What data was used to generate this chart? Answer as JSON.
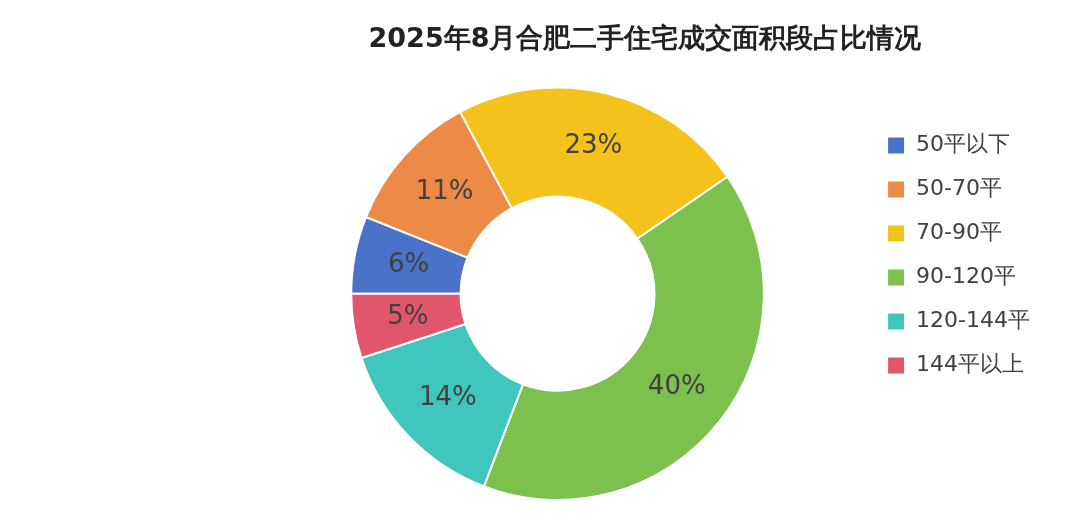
{
  "chart_data": {
    "type": "donut",
    "title": "2025年8月合肥二手住宅成交面积段占比情况",
    "categories": [
      "50平以下",
      "50-70平",
      "70-90平",
      "90-120平",
      "120-144平",
      "144平以上"
    ],
    "values": [
      6,
      11,
      23,
      40,
      14,
      5
    ],
    "value_labels": [
      "6%",
      "11%",
      "23%",
      "40%",
      "14%",
      "5%"
    ],
    "colors": [
      "#4a72c8",
      "#ee8a48",
      "#f5c21b",
      "#7cc04e",
      "#3fc7bd",
      "#e2566b"
    ],
    "legend": "right"
  }
}
